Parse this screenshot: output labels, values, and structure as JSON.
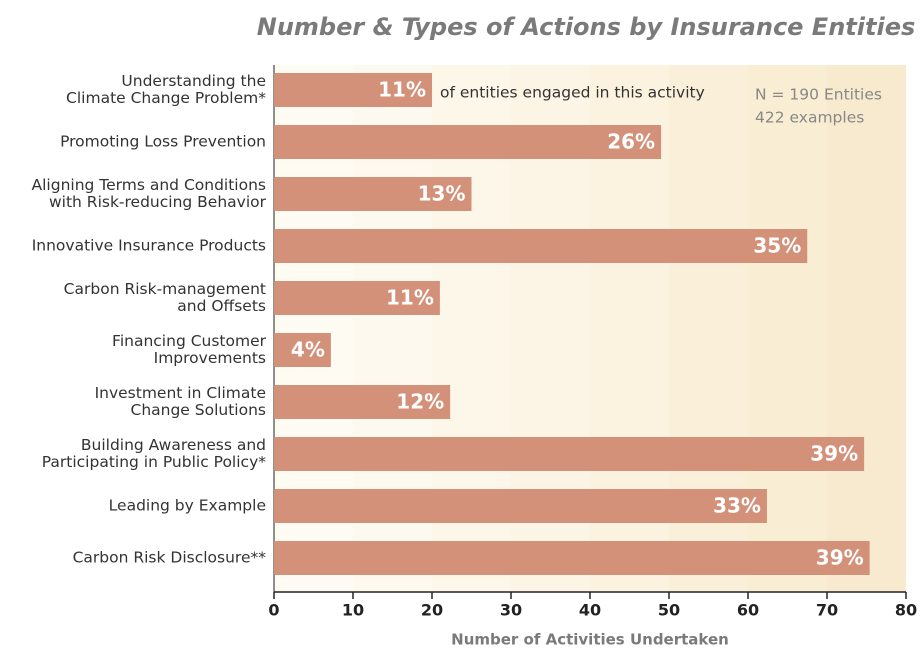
{
  "chart_data": {
    "type": "bar",
    "orientation": "horizontal",
    "title": "Number & Types of Actions by Insurance Entities",
    "x_label": "Number of Activities Undertaken",
    "categories": [
      "Understanding the\nClimate Change Problem*",
      "Promoting Loss Prevention",
      "Aligning Terms and Conditions\nwith Risk-reducing Behavior",
      "Innovative Insurance Products",
      "Carbon Risk-management\nand Offsets",
      "Financing Customer\nImprovements",
      "Investment in Climate\nChange Solutions",
      "Building Awareness and\nParticipating in Public Policy*",
      "Leading by Example",
      "Carbon Risk Disclosure**"
    ],
    "values": [
      20,
      49,
      25,
      67.5,
      21,
      7.2,
      22.3,
      74.7,
      62.4,
      75.4
    ],
    "bar_labels": [
      "11%",
      "26%",
      "13%",
      "35%",
      "11%",
      "4%",
      "12%",
      "39%",
      "33%",
      "39%"
    ],
    "color": "#d4917a",
    "xlim": [
      0,
      80
    ],
    "xticks": [
      0,
      10,
      20,
      30,
      40,
      50,
      60,
      70,
      80
    ],
    "annotations": [
      "of entities engaged in this activity",
      "N = 190 Entities",
      "422 examples"
    ]
  }
}
